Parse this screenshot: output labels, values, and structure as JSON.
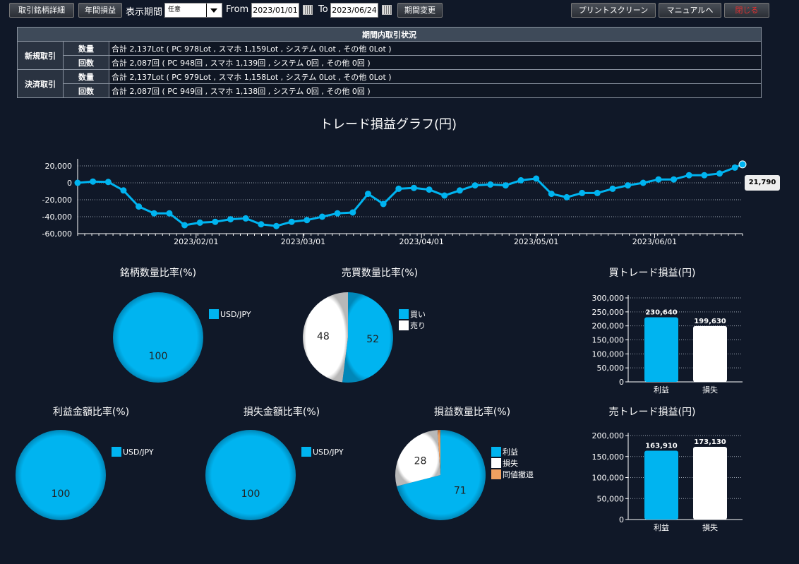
{
  "toolbar": {
    "detail_label": "取引銘柄詳細",
    "annual_label": "年間損益",
    "period_label": "表示期間",
    "period_select": "任意",
    "from_label": "From",
    "from_date": "2023/01/01",
    "to_label": "To",
    "to_date": "2023/06/24",
    "change_label": "期間変更",
    "print_label": "プリントスクリーン",
    "manual_label": "マニュアルへ",
    "close_label": "閉じる"
  },
  "status_table": {
    "header": "期間内取引状況",
    "new_label": "新規取引",
    "settle_label": "決済取引",
    "qty_label": "数量",
    "count_label": "回数",
    "new_qty": "合計 2,137Lot ( PC 978Lot , スマホ 1,159Lot , システム 0Lot , その他 0Lot )",
    "new_count": "合計 2,087回 ( PC 948回 , スマホ 1,139回 , システム 0回 , その他 0回 )",
    "settle_qty": "合計 2,137Lot ( PC 979Lot , スマホ 1,158Lot , システム 0Lot , その他 0Lot )",
    "settle_count": "合計 2,087回 ( PC 949回 , スマホ 1,138回 , システム 0回 , その他 0回 )"
  },
  "colors": {
    "accent": "#00b4f0",
    "white": "#ffffff",
    "orange": "#f0a060",
    "bg": "#101828"
  },
  "chart_data": [
    {
      "type": "line",
      "title": "トレード損益グラフ(円)",
      "ylim": [
        -60000,
        20000
      ],
      "y_ticks": [
        "20,000",
        "0",
        "-20,000",
        "-40,000",
        "-60,000"
      ],
      "x_ticks": [
        "2023/02/01",
        "2023/03/01",
        "2023/04/01",
        "2023/05/01",
        "2023/06/01"
      ],
      "last_value_label": "21,790",
      "x": [
        "2023/01/01",
        "2023/01/05",
        "2023/01/09",
        "2023/01/13",
        "2023/01/17",
        "2023/01/21",
        "2023/01/25",
        "2023/01/29",
        "2023/02/02",
        "2023/02/06",
        "2023/02/10",
        "2023/02/14",
        "2023/02/18",
        "2023/02/22",
        "2023/02/26",
        "2023/03/02",
        "2023/03/06",
        "2023/03/10",
        "2023/03/14",
        "2023/03/18",
        "2023/03/22",
        "2023/03/26",
        "2023/03/30",
        "2023/04/03",
        "2023/04/07",
        "2023/04/11",
        "2023/04/15",
        "2023/04/19",
        "2023/04/23",
        "2023/04/27",
        "2023/05/01",
        "2023/05/05",
        "2023/05/09",
        "2023/05/13",
        "2023/05/17",
        "2023/05/21",
        "2023/05/25",
        "2023/05/29",
        "2023/06/02",
        "2023/06/06",
        "2023/06/10",
        "2023/06/14",
        "2023/06/18",
        "2023/06/22",
        "2023/06/24"
      ],
      "values": [
        0,
        1500,
        1000,
        -9000,
        -28000,
        -36000,
        -36000,
        -50000,
        -47000,
        -46000,
        -43000,
        -42000,
        -49000,
        -51000,
        -46000,
        -44000,
        -40000,
        -36000,
        -35000,
        -13000,
        -25000,
        -7000,
        -6000,
        -8000,
        -15000,
        -9000,
        -3000,
        -2000,
        -3000,
        3000,
        5000,
        -13000,
        -17000,
        -12000,
        -12000,
        -7000,
        -3000,
        0,
        4000,
        4000,
        9000,
        9000,
        11000,
        18000,
        21790
      ]
    },
    {
      "type": "pie",
      "title": "銘柄数量比率(%)",
      "labels": [
        "USD/JPY"
      ],
      "values": [
        100
      ],
      "colors": [
        "#00b4f0"
      ]
    },
    {
      "type": "pie",
      "title": "売買数量比率(%)",
      "labels": [
        "買い",
        "売り"
      ],
      "values": [
        52,
        48
      ],
      "colors": [
        "#00b4f0",
        "#ffffff"
      ]
    },
    {
      "type": "bar",
      "title": "買トレード損益(円)",
      "categories": [
        "利益",
        "損失"
      ],
      "values": [
        230640,
        199630
      ],
      "value_labels": [
        "230,640",
        "199,630"
      ],
      "ylim": [
        0,
        300000
      ],
      "y_ticks": [
        "300,000",
        "250,000",
        "200,000",
        "150,000",
        "100,000",
        "50,000",
        "0"
      ]
    },
    {
      "type": "pie",
      "title": "利益金額比率(%)",
      "labels": [
        "USD/JPY"
      ],
      "values": [
        100
      ],
      "colors": [
        "#00b4f0"
      ]
    },
    {
      "type": "pie",
      "title": "損失金額比率(%)",
      "labels": [
        "USD/JPY"
      ],
      "values": [
        100
      ],
      "colors": [
        "#00b4f0"
      ]
    },
    {
      "type": "pie",
      "title": "損益数量比率(%)",
      "labels": [
        "利益",
        "損失",
        "同値撤退"
      ],
      "values": [
        71,
        28,
        1
      ],
      "value_labels": [
        "71",
        "28",
        ""
      ],
      "colors": [
        "#00b4f0",
        "#ffffff",
        "#f0a060"
      ]
    },
    {
      "type": "bar",
      "title": "売トレード損益(円)",
      "categories": [
        "利益",
        "損失"
      ],
      "values": [
        163910,
        173130
      ],
      "value_labels": [
        "163,910",
        "173,130"
      ],
      "ylim": [
        0,
        200000
      ],
      "y_ticks": [
        "200,000",
        "150,000",
        "100,000",
        "50,000",
        "0"
      ]
    }
  ]
}
